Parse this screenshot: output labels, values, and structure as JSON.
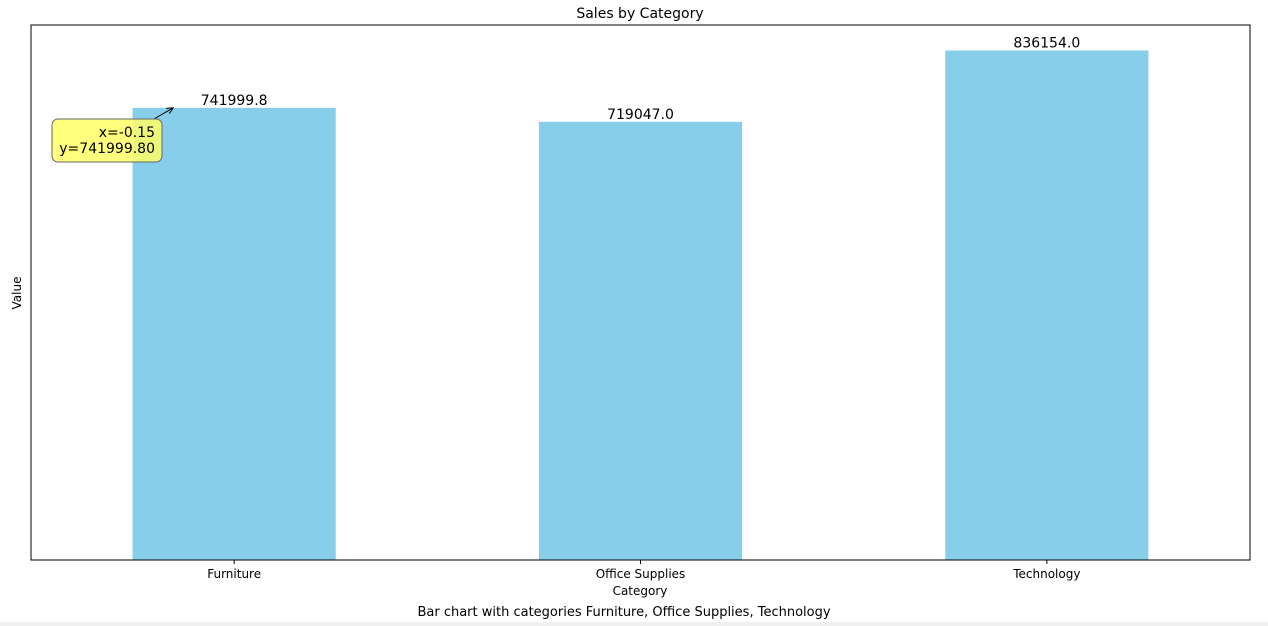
{
  "chart_data": {
    "type": "bar",
    "title": "Sales by Category",
    "xlabel": "Category",
    "ylabel": "Value",
    "caption": "Bar chart with categories Furniture, Office Supplies, Technology",
    "categories": [
      "Furniture",
      "Office Supplies",
      "Technology"
    ],
    "values": [
      741999.8,
      719047.0,
      836154.0
    ],
    "value_labels": [
      "741999.8",
      "719047.0",
      "836154.0"
    ],
    "ylim": [
      0,
      877961.7
    ],
    "yticks_visible": false,
    "grid": false,
    "legend": null,
    "bar_color": "#87ceeb",
    "annotation": {
      "line1": "x=-0.15",
      "line2": "y=741999.80",
      "x": -0.15,
      "y": 741999.8,
      "box_color": "#ffff66"
    }
  }
}
